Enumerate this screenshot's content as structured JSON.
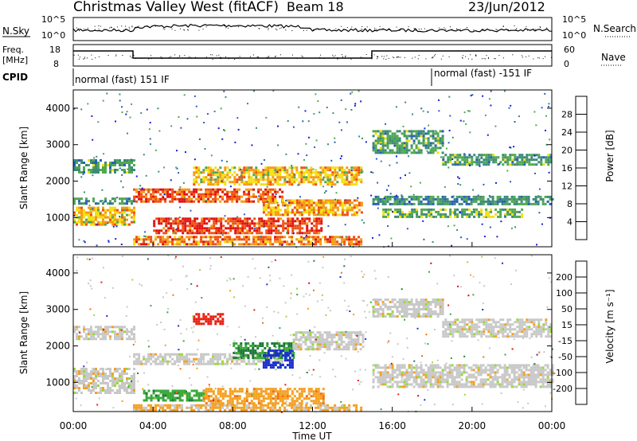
{
  "header": {
    "title": "Christmas Valley West (fitACF)",
    "beam": "Beam 18",
    "date": "23/Jun/2012"
  },
  "panel_labels": {
    "nsky": "N.Sky",
    "nsearch": "N.Search",
    "freq_line1": "Freq.",
    "freq_line2": "[MHz]",
    "nave": "Nave",
    "cpid": "CPID"
  },
  "noise_panel": {
    "left_ticks": [
      "10^5",
      "10^0"
    ],
    "right_ticks": [
      "10^5",
      "10^0"
    ]
  },
  "freq_panel": {
    "left_ticks": [
      "18",
      "8"
    ],
    "right_ticks": [
      "60",
      "0"
    ]
  },
  "cpid_panel": {
    "segments": [
      {
        "label": "normal (fast) 151 IF",
        "start_hour": 0,
        "end_hour": 18
      },
      {
        "label": "normal (fast) -151 IF",
        "start_hour": 18,
        "end_hour": 24
      }
    ]
  },
  "x_axis": {
    "label": "Time UT",
    "ticks": [
      "00:00",
      "04:00",
      "08:00",
      "12:00",
      "16:00",
      "20:00",
      "00:00"
    ]
  },
  "chart_data": [
    {
      "type": "heatmap",
      "name": "power",
      "ylabel": "Slant Range [km]",
      "xlim_hours": [
        0,
        24
      ],
      "ylim_km": [
        200,
        4500
      ],
      "yticks": [
        "1000",
        "2000",
        "3000",
        "4000"
      ],
      "colorbar": {
        "title": "Power [dB]",
        "ticks": [
          "4",
          "8",
          "12",
          "16",
          "20",
          "24",
          "28"
        ],
        "colors": [
          "#1520d8",
          "#2a5fb8",
          "#3c8a7a",
          "#50a850",
          "#f2e010",
          "#f59a10",
          "#f05010",
          "#e01010"
        ]
      },
      "bands": [
        {
          "h0": 0.0,
          "h1": 3.0,
          "km0": 2250,
          "km1": 2600,
          "level": 10
        },
        {
          "h0": 0.0,
          "h1": 3.0,
          "km0": 800,
          "km1": 1300,
          "level": 18
        },
        {
          "h0": 0.0,
          "h1": 3.0,
          "km0": 1400,
          "km1": 1550,
          "level": 9
        },
        {
          "h0": 3.0,
          "h1": 10.5,
          "km0": 1450,
          "km1": 1800,
          "level": 24
        },
        {
          "h0": 4.0,
          "h1": 12.5,
          "km0": 600,
          "km1": 1000,
          "level": 26
        },
        {
          "h0": 6.0,
          "h1": 14.5,
          "km0": 1900,
          "km1": 2400,
          "level": 18
        },
        {
          "h0": 9.5,
          "h1": 14.5,
          "km0": 1100,
          "km1": 1500,
          "level": 20
        },
        {
          "h0": 3.0,
          "h1": 14.5,
          "km0": 300,
          "km1": 500,
          "level": 22
        },
        {
          "h0": 15.0,
          "h1": 18.5,
          "km0": 2800,
          "km1": 3400,
          "level": 10
        },
        {
          "h0": 18.5,
          "h1": 24.0,
          "km0": 2450,
          "km1": 2750,
          "level": 10
        },
        {
          "h0": 15.0,
          "h1": 24.0,
          "km0": 1400,
          "km1": 1600,
          "level": 9
        },
        {
          "h0": 15.5,
          "h1": 22.5,
          "km0": 1000,
          "km1": 1250,
          "level": 12
        }
      ]
    },
    {
      "type": "heatmap",
      "name": "velocity",
      "ylabel": "Slant Range [km]",
      "xlim_hours": [
        0,
        24
      ],
      "ylim_km": [
        200,
        4500
      ],
      "yticks": [
        "1000",
        "2000",
        "3000",
        "4000"
      ],
      "colorbar": {
        "title": "Velocity [m s⁻¹]",
        "ticks": [
          "200",
          "100",
          "50",
          "15",
          "-15",
          "-50",
          "-100",
          "-200"
        ],
        "colors": [
          "#1a2fd0",
          "#1f7a3a",
          "#38a838",
          "#9ad838",
          "#c8c8c8",
          "#f5a020",
          "#f07010",
          "#e82010",
          "#d01010"
        ]
      },
      "bands": [
        {
          "h0": 0.0,
          "h1": 3.0,
          "km0": 2200,
          "km1": 2550,
          "vel": 0
        },
        {
          "h0": 0.0,
          "h1": 3.0,
          "km0": 700,
          "km1": 1400,
          "vel": 0
        },
        {
          "h0": 3.0,
          "h1": 10.5,
          "km0": 1500,
          "km1": 1800,
          "vel": 0
        },
        {
          "h0": 3.5,
          "h1": 6.5,
          "km0": 500,
          "km1": 800,
          "vel": 60
        },
        {
          "h0": 6.5,
          "h1": 12.5,
          "km0": 400,
          "km1": 850,
          "vel": -60
        },
        {
          "h0": 8.0,
          "h1": 11.0,
          "km0": 1700,
          "km1": 2100,
          "vel": 80
        },
        {
          "h0": 9.5,
          "h1": 11.0,
          "km0": 1400,
          "km1": 1900,
          "vel": 200
        },
        {
          "h0": 6.0,
          "h1": 7.5,
          "km0": 2600,
          "km1": 2900,
          "vel": -200
        },
        {
          "h0": 11.0,
          "h1": 14.5,
          "km0": 1900,
          "km1": 2400,
          "vel": 0
        },
        {
          "h0": 15.0,
          "h1": 18.5,
          "km0": 2800,
          "km1": 3300,
          "vel": 0
        },
        {
          "h0": 18.5,
          "h1": 24.0,
          "km0": 2250,
          "km1": 2750,
          "vel": 0
        },
        {
          "h0": 15.0,
          "h1": 24.0,
          "km0": 900,
          "km1": 1500,
          "vel": 0
        },
        {
          "h0": 3.0,
          "h1": 14.5,
          "km0": 250,
          "km1": 400,
          "vel": -40
        }
      ]
    }
  ]
}
